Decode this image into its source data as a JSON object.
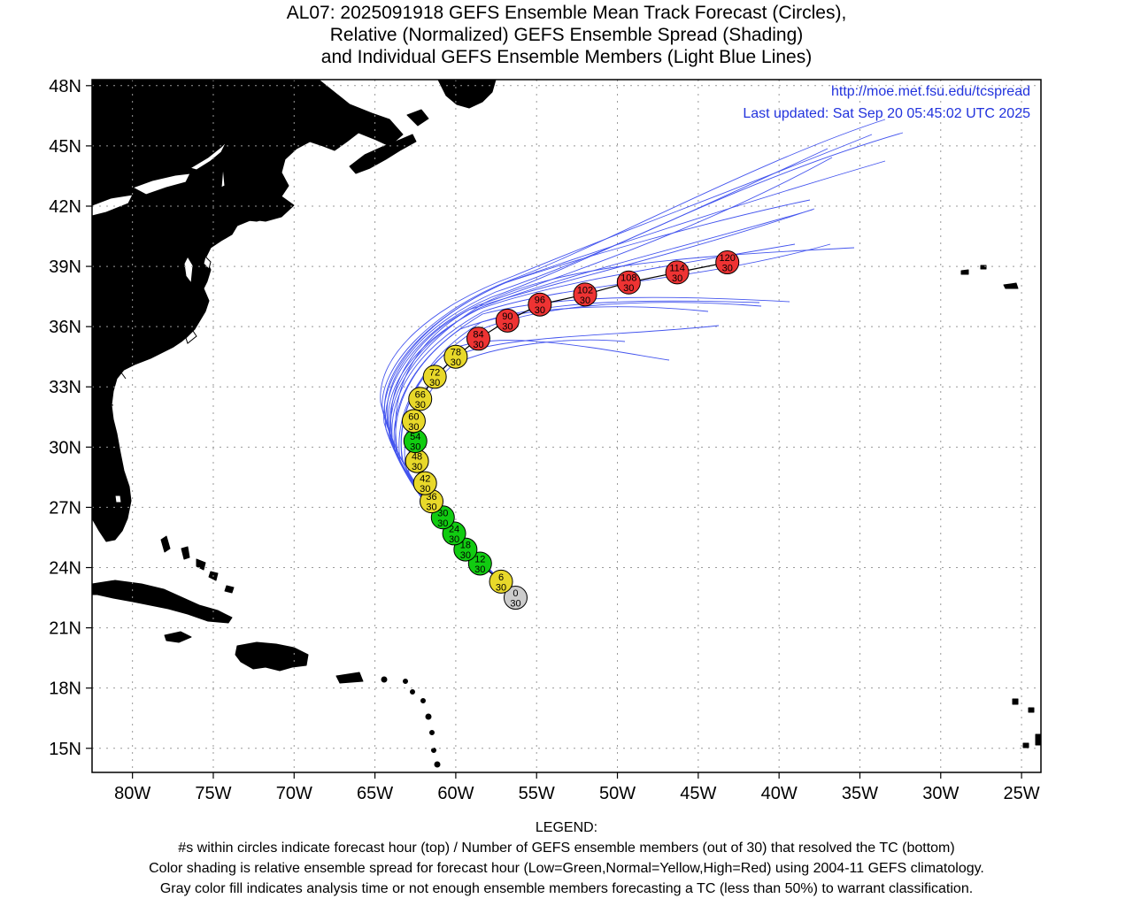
{
  "title": {
    "line1": "AL07: 2025091918 GEFS Ensemble Mean Track Forecast (Circles),",
    "line2": "Relative (Normalized) GEFS Ensemble Spread (Shading)",
    "line3": "and Individual GEFS Ensemble Members (Light Blue Lines)"
  },
  "credits": {
    "url": "http://moe.met.fsu.edu/tcspread",
    "updated": "Last updated: Sat Sep 20 05:45:02 UTC 2025"
  },
  "legend": {
    "heading": "LEGEND:",
    "line1": "#s within circles indicate forecast hour (top) / Number of GEFS ensemble members (out of 30) that resolved the TC (bottom)",
    "line2": "Color shading is relative ensemble spread for forecast hour (Low=Green,Normal=Yellow,High=Red) using 2004-11 GEFS climatology.",
    "line3": "Gray color fill indicates analysis time or not enough ensemble members forecasting a TC (less than 50%) to warrant classification."
  },
  "colors": {
    "land": "#deb887",
    "ocean": "#ffffff",
    "member_line": "#4455ee",
    "credit_text": "#2233dd",
    "low": "#11cc11",
    "normal": "#e8d82a",
    "high": "#ee3333",
    "gray": "#cccccc"
  },
  "chart_data": {
    "type": "scatter",
    "xlim": [
      -82.5,
      -23.8
    ],
    "ylim": [
      13.8,
      48.3
    ],
    "grid": true,
    "lon_ticks": [
      {
        "value": -80,
        "label": "80W"
      },
      {
        "value": -75,
        "label": "75W"
      },
      {
        "value": -70,
        "label": "70W"
      },
      {
        "value": -65,
        "label": "65W"
      },
      {
        "value": -60,
        "label": "60W"
      },
      {
        "value": -55,
        "label": "55W"
      },
      {
        "value": -50,
        "label": "50W"
      },
      {
        "value": -45,
        "label": "45W"
      },
      {
        "value": -40,
        "label": "40W"
      },
      {
        "value": -35,
        "label": "35W"
      },
      {
        "value": -30,
        "label": "30W"
      },
      {
        "value": -25,
        "label": "25W"
      }
    ],
    "lat_ticks": [
      {
        "value": 15,
        "label": "15N"
      },
      {
        "value": 18,
        "label": "18N"
      },
      {
        "value": 21,
        "label": "21N"
      },
      {
        "value": 24,
        "label": "24N"
      },
      {
        "value": 27,
        "label": "27N"
      },
      {
        "value": 30,
        "label": "30N"
      },
      {
        "value": 33,
        "label": "33N"
      },
      {
        "value": 36,
        "label": "36N"
      },
      {
        "value": 39,
        "label": "39N"
      },
      {
        "value": 42,
        "label": "42N"
      },
      {
        "value": 45,
        "label": "45N"
      },
      {
        "value": 48,
        "label": "48N"
      }
    ],
    "mean_track": [
      {
        "hour": "0",
        "members": "30",
        "lon": -56.3,
        "lat": 22.5,
        "spread": "gray"
      },
      {
        "hour": "6",
        "members": "30",
        "lon": -57.2,
        "lat": 23.3,
        "spread": "normal"
      },
      {
        "hour": "12",
        "members": "30",
        "lon": -58.5,
        "lat": 24.2,
        "spread": "low"
      },
      {
        "hour": "18",
        "members": "30",
        "lon": -59.4,
        "lat": 24.9,
        "spread": "low"
      },
      {
        "hour": "24",
        "members": "30",
        "lon": -60.1,
        "lat": 25.7,
        "spread": "low"
      },
      {
        "hour": "30",
        "members": "30",
        "lon": -60.8,
        "lat": 26.5,
        "spread": "low"
      },
      {
        "hour": "36",
        "members": "30",
        "lon": -61.5,
        "lat": 27.3,
        "spread": "normal"
      },
      {
        "hour": "42",
        "members": "30",
        "lon": -61.9,
        "lat": 28.2,
        "spread": "normal"
      },
      {
        "hour": "48",
        "members": "30",
        "lon": -62.4,
        "lat": 29.3,
        "spread": "normal"
      },
      {
        "hour": "54",
        "members": "30",
        "lon": -62.5,
        "lat": 30.3,
        "spread": "low"
      },
      {
        "hour": "60",
        "members": "30",
        "lon": -62.6,
        "lat": 31.3,
        "spread": "normal"
      },
      {
        "hour": "66",
        "members": "30",
        "lon": -62.2,
        "lat": 32.4,
        "spread": "normal"
      },
      {
        "hour": "72",
        "members": "30",
        "lon": -61.3,
        "lat": 33.5,
        "spread": "normal"
      },
      {
        "hour": "78",
        "members": "30",
        "lon": -60.0,
        "lat": 34.5,
        "spread": "normal"
      },
      {
        "hour": "84",
        "members": "30",
        "lon": -58.6,
        "lat": 35.4,
        "spread": "high"
      },
      {
        "hour": "90",
        "members": "30",
        "lon": -56.8,
        "lat": 36.3,
        "spread": "high"
      },
      {
        "hour": "96",
        "members": "30",
        "lon": -54.8,
        "lat": 37.1,
        "spread": "high"
      },
      {
        "hour": "102",
        "members": "30",
        "lon": -52.0,
        "lat": 37.6,
        "spread": "high"
      },
      {
        "hour": "108",
        "members": "30",
        "lon": -49.3,
        "lat": 38.2,
        "spread": "high"
      },
      {
        "hour": "114",
        "members": "30",
        "lon": -46.3,
        "lat": 38.7,
        "spread": "high"
      },
      {
        "hour": "120",
        "members": "30",
        "lon": -43.2,
        "lat": 39.2,
        "spread": "high"
      }
    ]
  }
}
